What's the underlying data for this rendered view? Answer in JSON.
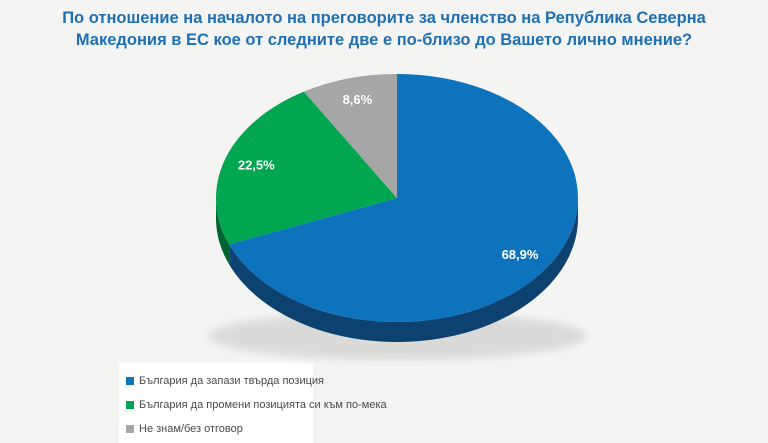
{
  "title": {
    "lines": [
      "По отношение на началото на преговорите за членство на Република Северна",
      "Македония в ЕС кое от следните две е по-близо до Вашето лично мнение?"
    ],
    "color": "#1e6fb4"
  },
  "chart_data": {
    "type": "pie",
    "title": "По отношение на началото на преговорите за членство на Република Северна Македония в ЕС кое от следните две е по-близо до Вашето лично мнение?",
    "effect": "3d",
    "start_angle_deg": 90,
    "direction": "clockwise",
    "legend_position": "bottom-left",
    "series": [
      {
        "name": "България да запази твърда позиция",
        "value": 68.9,
        "label": "68,9%",
        "color": "#0e73bd",
        "side_color": "#0d4270"
      },
      {
        "name": "България да промени позицията си към по-мека",
        "value": 22.5,
        "label": "22,5%",
        "color": "#00a650",
        "side_color": "#00632f"
      },
      {
        "name": "Не знам/без отговор",
        "value": 8.6,
        "label": "8,6%",
        "color": "#a6a6a6",
        "side_color": "#707070"
      }
    ],
    "value_label_color": "#ffffff"
  },
  "colors": {
    "background": "#f4f4f3",
    "legend_background": "#ffffff",
    "legend_text": "#4a4a4a"
  }
}
